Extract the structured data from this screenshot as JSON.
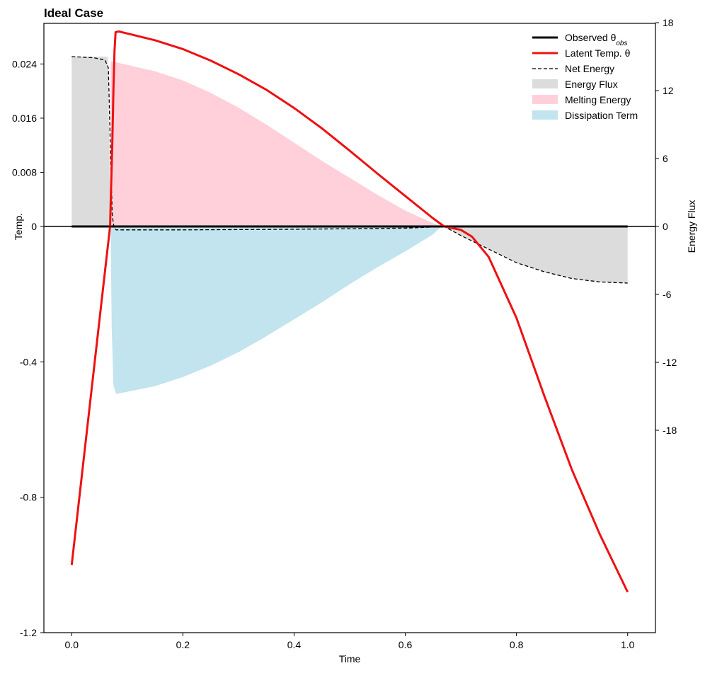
{
  "chart_data": {
    "type": "line",
    "title": "Ideal Case",
    "xlabel": "Time",
    "ylabel_left": "Temp.",
    "ylabel_right": "Energy Flux",
    "xlim": [
      -0.05,
      1.05
    ],
    "x_ticks": [
      0.0,
      0.2,
      0.4,
      0.6,
      0.8,
      1.0
    ],
    "x_tick_labels": [
      "0.0",
      "0.2",
      "0.4",
      "0.6",
      "0.8",
      "1.0"
    ],
    "left_axis": {
      "scale": "piecewise-linear",
      "note": "positive side magnified: 0..0.024 occupies upper segment, -1.2..0 lower segment",
      "ylim": [
        -1.2,
        0.03
      ],
      "ticks": [
        -1.2,
        -0.8,
        -0.4,
        0,
        0.008,
        0.016,
        0.024
      ],
      "tick_labels": [
        "-1.2",
        "-0.8",
        "-0.4",
        "0",
        "0.008",
        "0.016",
        "0.024"
      ]
    },
    "right_axis": {
      "ylim": [
        -36,
        18
      ],
      "ticks": [
        18,
        12,
        6,
        0,
        -6,
        -12,
        -18
      ],
      "tick_labels": [
        "18",
        "12",
        "6",
        "0",
        "-6",
        "-12",
        "-18"
      ]
    },
    "legend": {
      "position": "top-right",
      "entries": [
        {
          "label": "Observed θ",
          "subscript": "obs",
          "style": "line",
          "color": "#000000"
        },
        {
          "label": "Latent Temp. θ",
          "style": "line",
          "color": "#ee1111"
        },
        {
          "label": "Net Energy",
          "style": "dashed",
          "color": "#000000"
        },
        {
          "label": "Energy Flux",
          "style": "patch",
          "color": "#dcdcdc"
        },
        {
          "label": "Melting Energy",
          "style": "patch",
          "color": "#ffd0da"
        },
        {
          "label": "Dissipation Term",
          "style": "patch",
          "color": "#c2e4ee"
        }
      ]
    },
    "series": [
      {
        "name": "Observed θobs",
        "axis": "left",
        "color": "#000000",
        "x": [
          0.0,
          0.068,
          0.069,
          1.0
        ],
        "y": [
          0.0,
          0.0,
          0.0,
          0.0
        ]
      },
      {
        "name": "Latent Temp. θ",
        "axis": "left",
        "color": "#ee1111",
        "points": [
          [
            0.0,
            -1.0
          ],
          [
            0.069,
            0.0
          ],
          [
            0.071,
            0.006
          ],
          [
            0.073,
            0.012
          ],
          [
            0.075,
            0.02
          ],
          [
            0.077,
            0.026
          ],
          [
            0.079,
            0.0287
          ],
          [
            0.085,
            0.0288
          ],
          [
            0.1,
            0.0285
          ],
          [
            0.15,
            0.0275
          ],
          [
            0.2,
            0.0262
          ],
          [
            0.25,
            0.0245
          ],
          [
            0.3,
            0.0225
          ],
          [
            0.35,
            0.0202
          ],
          [
            0.4,
            0.0175
          ],
          [
            0.45,
            0.0145
          ],
          [
            0.5,
            0.0112
          ],
          [
            0.55,
            0.0078
          ],
          [
            0.6,
            0.0045
          ],
          [
            0.65,
            0.0012
          ],
          [
            0.67,
            0.0
          ],
          [
            0.7,
            -0.01
          ],
          [
            0.72,
            -0.03
          ],
          [
            0.75,
            -0.09
          ],
          [
            0.8,
            -0.27
          ],
          [
            0.85,
            -0.5
          ],
          [
            0.9,
            -0.72
          ],
          [
            0.95,
            -0.91
          ],
          [
            1.0,
            -1.08
          ]
        ]
      },
      {
        "name": "Net Energy",
        "axis": "right",
        "color": "#000000",
        "dashed": true,
        "points": [
          [
            0.0,
            15.0
          ],
          [
            0.04,
            14.9
          ],
          [
            0.06,
            14.7
          ],
          [
            0.066,
            14.0
          ],
          [
            0.07,
            6.0
          ],
          [
            0.073,
            1.0
          ],
          [
            0.076,
            -0.1
          ],
          [
            0.08,
            -0.3
          ],
          [
            0.2,
            -0.3
          ],
          [
            0.4,
            -0.25
          ],
          [
            0.6,
            -0.15
          ],
          [
            0.65,
            -0.05
          ],
          [
            0.67,
            0.0
          ],
          [
            0.7,
            -0.8
          ],
          [
            0.75,
            -2.0
          ],
          [
            0.8,
            -3.2
          ],
          [
            0.85,
            -4.0
          ],
          [
            0.9,
            -4.6
          ],
          [
            0.95,
            -4.9
          ],
          [
            1.0,
            -5.0
          ]
        ]
      },
      {
        "name": "Energy Flux",
        "axis": "right",
        "color": "#dcdcdc",
        "fill": true,
        "points": [
          [
            0.0,
            15.0
          ],
          [
            0.065,
            15.0
          ],
          [
            0.07,
            0.0
          ],
          [
            0.67,
            0.0
          ],
          [
            0.7,
            -0.8
          ],
          [
            0.75,
            -2.0
          ],
          [
            0.8,
            -3.2
          ],
          [
            0.85,
            -4.0
          ],
          [
            0.9,
            -4.6
          ],
          [
            0.95,
            -4.9
          ],
          [
            1.0,
            -5.0
          ]
        ]
      },
      {
        "name": "Melting Energy",
        "axis": "right",
        "color": "#ffd0da",
        "fill": true,
        "points": [
          [
            0.07,
            14.6
          ],
          [
            0.08,
            14.5
          ],
          [
            0.15,
            13.7
          ],
          [
            0.2,
            12.9
          ],
          [
            0.25,
            11.8
          ],
          [
            0.3,
            10.5
          ],
          [
            0.35,
            9.0
          ],
          [
            0.4,
            7.4
          ],
          [
            0.45,
            5.8
          ],
          [
            0.5,
            4.3
          ],
          [
            0.55,
            2.8
          ],
          [
            0.6,
            1.4
          ],
          [
            0.65,
            0.3
          ],
          [
            0.665,
            0.0
          ]
        ]
      },
      {
        "name": "Dissipation Term",
        "axis": "right",
        "color": "#c2e4ee",
        "fill": true,
        "points": [
          [
            0.07,
            -0.3
          ],
          [
            0.072,
            -9.0
          ],
          [
            0.075,
            -14.0
          ],
          [
            0.08,
            -14.8
          ],
          [
            0.1,
            -14.6
          ],
          [
            0.15,
            -14.1
          ],
          [
            0.2,
            -13.3
          ],
          [
            0.25,
            -12.3
          ],
          [
            0.3,
            -11.1
          ],
          [
            0.35,
            -9.7
          ],
          [
            0.4,
            -8.2
          ],
          [
            0.45,
            -6.7
          ],
          [
            0.5,
            -5.1
          ],
          [
            0.55,
            -3.6
          ],
          [
            0.6,
            -2.2
          ],
          [
            0.65,
            -0.7
          ],
          [
            0.665,
            0.0
          ]
        ]
      }
    ]
  }
}
